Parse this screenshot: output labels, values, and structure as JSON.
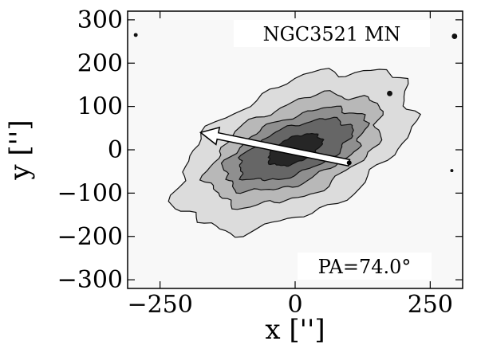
{
  "chart_data": {
    "type": "contour",
    "title": "",
    "annotation_object": "NGC3521 MN",
    "annotation_pa": "PA=74.0°",
    "xlabel": "x ['']",
    "ylabel": "y ['']",
    "xlim": [
      -310,
      310
    ],
    "ylim": [
      -320,
      320
    ],
    "xticks": [
      {
        "value": -250,
        "label": "−250"
      },
      {
        "value": 0,
        "label": "0"
      },
      {
        "value": 250,
        "label": "250"
      }
    ],
    "yticks": [
      {
        "value": 300,
        "label": "300"
      },
      {
        "value": 200,
        "label": "200"
      },
      {
        "value": 100,
        "label": "100"
      },
      {
        "value": 0,
        "label": "0"
      },
      {
        "value": -100,
        "label": "−100"
      },
      {
        "value": -200,
        "label": "−200"
      },
      {
        "value": -300,
        "label": "−300"
      }
    ],
    "contour_levels": [
      {
        "level": 1,
        "semi_major": 250,
        "semi_minor": 140,
        "angle_deg": 36,
        "fill": "#dcdcdc"
      },
      {
        "level": 2,
        "semi_major": 180,
        "semi_minor": 100,
        "angle_deg": 33,
        "fill": "#b8b8b8"
      },
      {
        "level": 3,
        "semi_major": 145,
        "semi_minor": 72,
        "angle_deg": 30,
        "fill": "#8f8f8f"
      },
      {
        "level": 4,
        "semi_major": 115,
        "semi_minor": 52,
        "angle_deg": 28,
        "fill": "#666666"
      },
      {
        "level": 5,
        "semi_major": 55,
        "semi_minor": 28,
        "angle_deg": 30,
        "fill": "#262626"
      }
    ],
    "pa_arrow": {
      "from": [
        100,
        -30
      ],
      "to": [
        -175,
        40
      ]
    },
    "point_sources": [
      {
        "x": -295,
        "y": 265,
        "r": 5
      },
      {
        "x": 295,
        "y": 262,
        "r": 7
      },
      {
        "x": 175,
        "y": 130,
        "r": 7
      },
      {
        "x": 290,
        "y": -48,
        "r": 4
      }
    ],
    "grid": false,
    "background": "#f8f8f8"
  }
}
